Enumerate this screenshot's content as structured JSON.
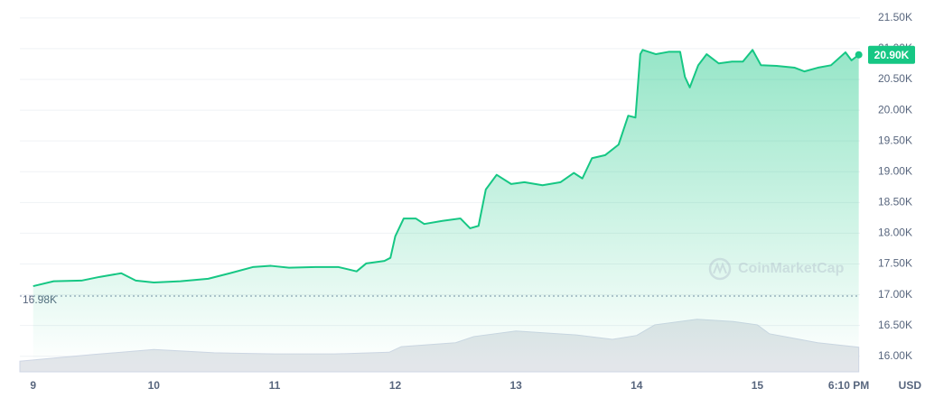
{
  "chart_data": {
    "type": "line",
    "series": [
      {
        "color": "#16c784",
        "x": [
          9.0,
          9.17,
          9.4,
          9.55,
          9.73,
          9.85,
          10.0,
          10.22,
          10.45,
          10.63,
          10.82,
          10.97,
          11.12,
          11.34,
          11.53,
          11.68,
          11.76,
          11.91,
          11.96,
          12.0,
          12.07,
          12.17,
          12.24,
          12.39,
          12.54,
          12.62,
          12.69,
          12.75,
          12.84,
          12.96,
          13.07,
          13.22,
          13.37,
          13.48,
          13.55,
          13.63,
          13.74,
          13.85,
          13.93,
          13.99,
          14.03,
          14.05,
          14.16,
          14.27,
          14.36,
          14.4,
          14.44,
          14.51,
          14.58,
          14.68,
          14.79,
          14.88,
          14.96,
          15.03,
          15.16,
          15.31,
          15.39,
          15.5,
          15.61,
          15.73,
          15.78,
          15.84
        ],
        "values": [
          17.14,
          17.22,
          17.23,
          17.29,
          17.35,
          17.23,
          17.2,
          17.22,
          17.26,
          17.35,
          17.45,
          17.47,
          17.44,
          17.45,
          17.45,
          17.38,
          17.51,
          17.55,
          17.6,
          17.95,
          18.24,
          18.24,
          18.15,
          18.2,
          18.24,
          18.08,
          18.12,
          18.71,
          18.95,
          18.8,
          18.83,
          18.78,
          18.83,
          18.98,
          18.89,
          19.22,
          19.27,
          19.44,
          19.91,
          19.88,
          20.91,
          20.98,
          20.91,
          20.95,
          20.95,
          20.54,
          20.37,
          20.73,
          20.91,
          20.76,
          20.79,
          20.79,
          20.98,
          20.73,
          20.72,
          20.69,
          20.63,
          20.69,
          20.73,
          20.94,
          20.81,
          20.9
        ]
      }
    ],
    "volume": {
      "color": "#e3e6ea",
      "x": [
        8.89,
        9.5,
        10.0,
        10.5,
        11.0,
        11.5,
        11.95,
        12.05,
        12.5,
        12.65,
        13.0,
        13.5,
        13.8,
        14.0,
        14.15,
        14.5,
        14.8,
        15.0,
        15.1,
        15.5,
        15.84
      ],
      "values": [
        19,
        31,
        40,
        34,
        32,
        32,
        35,
        45,
        52,
        63,
        73,
        66,
        58,
        65,
        84,
        94,
        90,
        84,
        68,
        52,
        44
      ]
    },
    "volume_lim": [
      0,
      100
    ],
    "xlim": [
      8.89,
      15.85
    ],
    "xticks": [
      9,
      10,
      11,
      12,
      13,
      14,
      15,
      {
        "value": 15.757,
        "label": "6:10 PM"
      }
    ],
    "ylim": [
      15.85,
      21.6
    ],
    "yticks": [
      {
        "value": 16.0,
        "label": "16.00K"
      },
      {
        "value": 16.5,
        "label": "16.50K"
      },
      {
        "value": 17.0,
        "label": "17.00K"
      },
      {
        "value": 17.5,
        "label": "17.50K"
      },
      {
        "value": 18.0,
        "label": "18.00K"
      },
      {
        "value": 18.5,
        "label": "18.50K"
      },
      {
        "value": 19.0,
        "label": "19.00K"
      },
      {
        "value": 19.5,
        "label": "19.50K"
      },
      {
        "value": 20.0,
        "label": "20.00K"
      },
      {
        "value": 20.5,
        "label": "20.50K"
      },
      {
        "value": 21.0,
        "label": "21.00K"
      },
      {
        "value": 21.5,
        "label": "21.50K"
      }
    ],
    "grid": true,
    "reference": {
      "value": 16.98,
      "label": "16.98K"
    },
    "last_price": {
      "value": 20.9,
      "label": "20.90K"
    },
    "unit": "USD",
    "watermark": "CoinMarketCap"
  }
}
